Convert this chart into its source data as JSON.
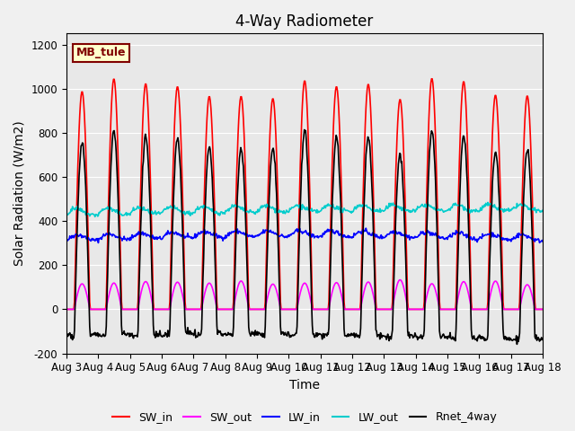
{
  "title": "4-Way Radiometer",
  "xlabel": "Time",
  "ylabel": "Solar Radiation (W/m2)",
  "ylim": [
    -200,
    1250
  ],
  "xlim": [
    0,
    15
  ],
  "xtick_positions": [
    0,
    1,
    2,
    3,
    4,
    5,
    6,
    7,
    8,
    9,
    10,
    11,
    12,
    13,
    14,
    15
  ],
  "xtick_labels": [
    "Aug 3",
    "Aug 4",
    "Aug 5",
    "Aug 6",
    "Aug 7",
    "Aug 8",
    "Aug 9",
    "Aug 10",
    "Aug 11",
    "Aug 12",
    "Aug 13",
    "Aug 14",
    "Aug 15",
    "Aug 16",
    "Aug 17",
    "Aug 18"
  ],
  "ytick_labels": [
    "-200",
    "0",
    "200",
    "400",
    "600",
    "800",
    "1000",
    "1200"
  ],
  "ytick_values": [
    -200,
    0,
    200,
    400,
    600,
    800,
    1000,
    1200
  ],
  "station_label": "MB_tule",
  "station_box_facecolor": "#ffffcc",
  "station_box_edgecolor": "#800000",
  "legend_entries": [
    "SW_in",
    "SW_out",
    "LW_in",
    "LW_out",
    "Rnet_4way"
  ],
  "line_colors": [
    "#ff0000",
    "#ff00ff",
    "#0000ff",
    "#00cccc",
    "#000000"
  ],
  "line_widths": [
    1.2,
    1.2,
    1.2,
    1.2,
    1.2
  ],
  "plot_bg_color": "#e8e8e8",
  "title_fontsize": 12,
  "label_fontsize": 10,
  "tick_fontsize": 8.5,
  "num_days": 15,
  "pts_per_day": 48
}
